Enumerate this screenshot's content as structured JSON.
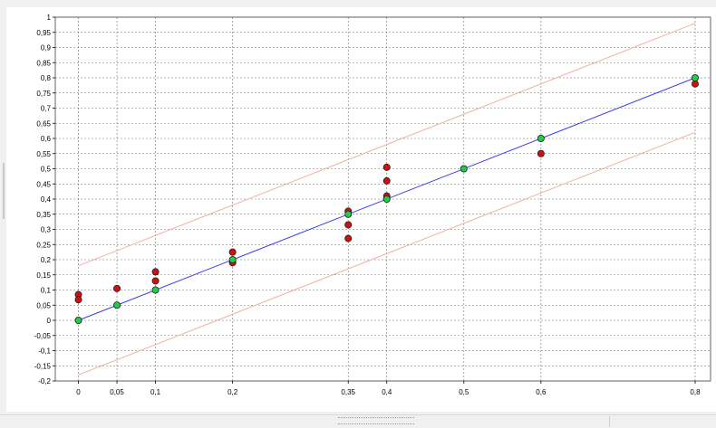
{
  "chart_data": {
    "type": "scatter",
    "title": "",
    "xlabel": "",
    "ylabel": "",
    "xlim": [
      -0.03,
      0.82
    ],
    "ylim": [
      -0.2,
      1.0
    ],
    "grid": true,
    "x_ticks": [
      {
        "value": 0,
        "label": "0"
      },
      {
        "value": 0.05,
        "label": "0,05"
      },
      {
        "value": 0.1,
        "label": "0,1"
      },
      {
        "value": 0.2,
        "label": "0,2"
      },
      {
        "value": 0.35,
        "label": "0,35"
      },
      {
        "value": 0.4,
        "label": "0,4"
      },
      {
        "value": 0.5,
        "label": "0,5"
      },
      {
        "value": 0.6,
        "label": "0,6"
      },
      {
        "value": 0.8,
        "label": "0,8"
      }
    ],
    "y_ticks": [
      {
        "value": 1.0,
        "label": "1"
      },
      {
        "value": 0.95,
        "label": "0,95"
      },
      {
        "value": 0.9,
        "label": "0,9"
      },
      {
        "value": 0.85,
        "label": "0,85"
      },
      {
        "value": 0.8,
        "label": "0,8"
      },
      {
        "value": 0.75,
        "label": "0,75"
      },
      {
        "value": 0.7,
        "label": "0,7"
      },
      {
        "value": 0.65,
        "label": "0,65"
      },
      {
        "value": 0.6,
        "label": "0,6"
      },
      {
        "value": 0.55,
        "label": "0,55"
      },
      {
        "value": 0.5,
        "label": "0,5"
      },
      {
        "value": 0.45,
        "label": "0,45"
      },
      {
        "value": 0.4,
        "label": "0,4"
      },
      {
        "value": 0.35,
        "label": "0,35"
      },
      {
        "value": 0.3,
        "label": "0,3"
      },
      {
        "value": 0.25,
        "label": "0,25"
      },
      {
        "value": 0.2,
        "label": "0,2"
      },
      {
        "value": 0.15,
        "label": "0,15"
      },
      {
        "value": 0.1,
        "label": "0,1"
      },
      {
        "value": 0.05,
        "label": "0,05"
      },
      {
        "value": 0,
        "label": "0"
      },
      {
        "value": -0.05,
        "label": "-0,05"
      },
      {
        "value": -0.1,
        "label": "-0,1"
      },
      {
        "value": -0.15,
        "label": "-0,15"
      },
      {
        "value": -0.2,
        "label": "-0,2"
      }
    ],
    "lines": [
      {
        "color": "#3a3af0",
        "points": [
          [
            0,
            0
          ],
          [
            0.8,
            0.8
          ]
        ]
      },
      {
        "color": "#f0b0a0",
        "points": [
          [
            0,
            0.18
          ],
          [
            0.8,
            0.98
          ]
        ]
      },
      {
        "color": "#f0b0a0",
        "points": [
          [
            0,
            -0.18
          ],
          [
            0.8,
            0.62
          ]
        ]
      }
    ],
    "series": [
      {
        "color": "#d01010",
        "points": [
          [
            0,
            0.085
          ],
          [
            0,
            0.068
          ],
          [
            0.05,
            0.105
          ],
          [
            0.1,
            0.16
          ],
          [
            0.1,
            0.13
          ],
          [
            0.2,
            0.225
          ],
          [
            0.2,
            0.19
          ],
          [
            0.35,
            0.36
          ],
          [
            0.35,
            0.315
          ],
          [
            0.35,
            0.27
          ],
          [
            0.4,
            0.505
          ],
          [
            0.4,
            0.46
          ],
          [
            0.4,
            0.41
          ],
          [
            0.6,
            0.55
          ],
          [
            0.8,
            0.78
          ]
        ]
      },
      {
        "color": "#22cc44",
        "points": [
          [
            0,
            0
          ],
          [
            0.05,
            0.05
          ],
          [
            0.1,
            0.1
          ],
          [
            0.2,
            0.2
          ],
          [
            0.35,
            0.35
          ],
          [
            0.4,
            0.4
          ],
          [
            0.5,
            0.5
          ],
          [
            0.6,
            0.6
          ],
          [
            0.8,
            0.8
          ]
        ]
      }
    ]
  }
}
